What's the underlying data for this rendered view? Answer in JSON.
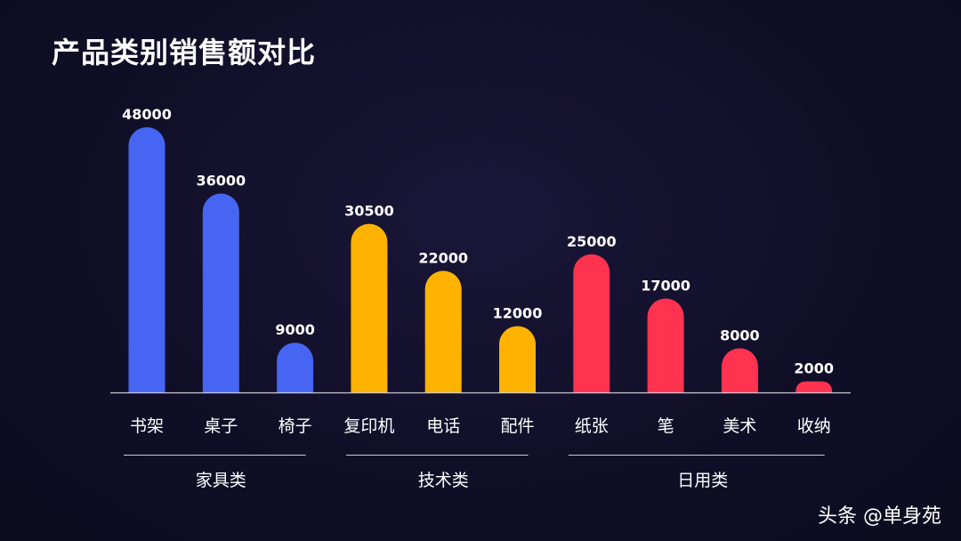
{
  "chart_data": {
    "type": "bar",
    "title": "产品类别销售额对比",
    "categories": [
      "书架",
      "桌子",
      "椅子",
      "复印机",
      "电话",
      "配件",
      "纸张",
      "笔",
      "美术",
      "收纳"
    ],
    "values": [
      48000,
      36000,
      9000,
      30500,
      22000,
      12000,
      25000,
      17000,
      8000,
      2000
    ],
    "groups": [
      {
        "name": "家具类",
        "members": [
          "书架",
          "桌子",
          "椅子"
        ],
        "color": "#4565F2"
      },
      {
        "name": "技术类",
        "members": [
          "复印机",
          "电话",
          "配件"
        ],
        "color": "#FFB300"
      },
      {
        "name": "日用类",
        "members": [
          "纸张",
          "笔",
          "美术",
          "收纳"
        ],
        "color": "#FF3350"
      }
    ],
    "xlabel": "",
    "ylabel": "",
    "data_labels": true,
    "grid": false
  },
  "watermark": "头条 @单身苑",
  "colors": {
    "background": "#110f28",
    "axis": "#c9c9d6",
    "text": "#ffffff"
  }
}
